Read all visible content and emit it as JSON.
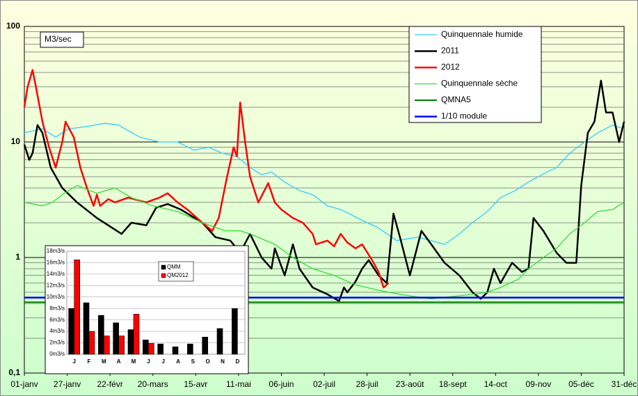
{
  "chart_data": [
    {
      "type": "line",
      "y_unit": "M3/sec",
      "log_scale": true,
      "grid": true,
      "legend": "top-right",
      "xlim": [
        0,
        364
      ],
      "xticks": [
        {
          "value": 0,
          "label": "01-janv"
        },
        {
          "value": 26,
          "label": "27-janv"
        },
        {
          "value": 52,
          "label": "22-févr"
        },
        {
          "value": 78,
          "label": "20-mars"
        },
        {
          "value": 104,
          "label": "15-avr"
        },
        {
          "value": 130,
          "label": "11-mai"
        },
        {
          "value": 156,
          "label": "06-juin"
        },
        {
          "value": 182,
          "label": "02-juil"
        },
        {
          "value": 208,
          "label": "28-juil"
        },
        {
          "value": 234,
          "label": "23-août"
        },
        {
          "value": 260,
          "label": "18-sept"
        },
        {
          "value": 286,
          "label": "14-oct"
        },
        {
          "value": 312,
          "label": "09-nov"
        },
        {
          "value": 338,
          "label": "05-déc"
        },
        {
          "value": 364,
          "label": "31-déc"
        }
      ],
      "ylim": [
        0.1,
        100
      ],
      "yticks": [
        {
          "value": 0.1,
          "label": "0,1"
        },
        1,
        10,
        100
      ],
      "yminor": [
        0.2,
        0.3,
        0.4,
        0.5,
        0.6,
        0.7,
        0.8,
        0.9,
        2,
        3,
        4,
        5,
        6,
        7,
        8,
        9,
        20,
        30,
        40,
        50,
        60,
        70,
        80,
        90
      ],
      "series": [
        {
          "name": "Quinquennale humide",
          "color": "#33ccff",
          "width": 1.3,
          "x": [
            0,
            11,
            19,
            27,
            36,
            49,
            57,
            70,
            82,
            93,
            103,
            112,
            120,
            129,
            137,
            144,
            150,
            158,
            167,
            175,
            184,
            192,
            205,
            215,
            226,
            239,
            247,
            255,
            264,
            272,
            281,
            289,
            298,
            306,
            315,
            323,
            331,
            340,
            348,
            357,
            364
          ],
          "values": [
            12,
            13,
            11,
            13,
            13.5,
            14.5,
            14,
            11,
            10,
            10,
            8.5,
            9,
            8,
            7.5,
            6,
            5.2,
            5.5,
            4.5,
            3.8,
            3.5,
            2.8,
            2.6,
            2.1,
            1.8,
            1.4,
            1.5,
            1.4,
            1.3,
            1.6,
            2,
            2.5,
            3.3,
            3.8,
            4.5,
            5.3,
            6,
            8,
            10,
            12,
            14,
            13
          ]
        },
        {
          "name": "2011",
          "color": "#000000",
          "width": 2.5,
          "x": [
            0,
            3,
            5,
            8,
            11,
            16,
            23,
            32,
            44,
            59,
            65,
            74,
            80,
            87,
            95,
            108,
            116,
            125,
            131,
            137,
            144,
            150,
            152,
            158,
            163,
            167,
            175,
            184,
            191,
            194,
            196,
            201,
            205,
            209,
            215,
            220,
            224,
            228,
            234,
            241,
            247,
            255,
            264,
            272,
            277,
            281,
            285,
            289,
            296,
            302,
            306,
            309,
            315,
            323,
            329,
            335,
            338,
            342,
            346,
            350,
            353,
            357,
            361,
            364
          ],
          "values": [
            9.5,
            7,
            8,
            14,
            12,
            6,
            4,
            3,
            2.2,
            1.6,
            2,
            1.9,
            2.7,
            2.9,
            2.6,
            2,
            1.5,
            1.4,
            1.1,
            1.6,
            1,
            0.8,
            1.2,
            0.7,
            1.3,
            0.8,
            0.55,
            0.48,
            0.42,
            0.55,
            0.5,
            0.62,
            0.8,
            0.95,
            0.7,
            0.6,
            2.4,
            1.5,
            0.7,
            1.7,
            1.3,
            0.9,
            0.7,
            0.5,
            0.44,
            0.5,
            0.8,
            0.6,
            0.9,
            0.75,
            0.8,
            2.2,
            1.7,
            1.1,
            0.9,
            0.9,
            4.2,
            12,
            15,
            34,
            18,
            18,
            10,
            15
          ]
        },
        {
          "name": "2012",
          "color": "#ff0000",
          "width": 2.5,
          "x": [
            0,
            2,
            5,
            7,
            11,
            15,
            19,
            23,
            25,
            30,
            34,
            38,
            42,
            44,
            46,
            51,
            55,
            63,
            74,
            82,
            87,
            93,
            99,
            108,
            114,
            118,
            123,
            127,
            129,
            131,
            134,
            137,
            142,
            148,
            152,
            156,
            163,
            169,
            175,
            177,
            184,
            188,
            192,
            196,
            201,
            205,
            211,
            215,
            218,
            221
          ],
          "values": [
            20,
            30,
            42,
            30,
            15,
            9,
            6,
            10,
            15,
            11,
            6,
            4,
            2.8,
            3.5,
            2.8,
            3.2,
            3,
            3.3,
            3,
            3.3,
            3.6,
            3,
            2.6,
            2,
            1.7,
            2.2,
            5,
            9,
            7.5,
            22,
            10,
            5,
            3,
            4.4,
            3,
            2.6,
            2.2,
            2,
            1.6,
            1.3,
            1.4,
            1.25,
            1.6,
            1.35,
            1.2,
            1.3,
            0.95,
            0.75,
            0.55,
            0.6
          ]
        },
        {
          "name": "Quinquennale sèche",
          "color": "#33dd33",
          "width": 1.3,
          "x": [
            0,
            11,
            17,
            23,
            32,
            44,
            55,
            65,
            78,
            93,
            108,
            122,
            131,
            137,
            152,
            163,
            175,
            188,
            201,
            215,
            228,
            241,
            247,
            260,
            272,
            281,
            289,
            300,
            306,
            315,
            323,
            331,
            340,
            348,
            357,
            364
          ],
          "values": [
            3,
            2.8,
            3,
            3.5,
            4.2,
            3.6,
            4,
            3.3,
            2.8,
            2.5,
            2,
            1.7,
            1.7,
            1.6,
            1.3,
            1,
            0.8,
            0.7,
            0.58,
            0.52,
            0.48,
            0.45,
            0.44,
            0.46,
            0.48,
            0.5,
            0.55,
            0.65,
            0.8,
            1,
            1.2,
            1.6,
            2,
            2.5,
            2.6,
            3
          ]
        },
        {
          "name": "QMNA5",
          "color": "#008000",
          "width": 2,
          "x": [
            0,
            364
          ],
          "values": [
            0.41,
            0.41
          ]
        },
        {
          "name": "1/10 module",
          "color": "#0000ff",
          "width": 2.5,
          "x": [
            0,
            364
          ],
          "values": [
            0.45,
            0.45
          ]
        }
      ]
    },
    {
      "type": "bar",
      "categories": [
        "J",
        "F",
        "M",
        "A",
        "M",
        "J",
        "J",
        "A",
        "S",
        "O",
        "N",
        "D"
      ],
      "ylim": [
        0,
        18
      ],
      "yticks": [
        {
          "value": 0,
          "label": "0m3/s"
        },
        {
          "value": 2,
          "label": "2m3/s"
        },
        {
          "value": 4,
          "label": "4m3/s"
        },
        {
          "value": 6,
          "label": "6m3/s"
        },
        {
          "value": 8,
          "label": "8m3/s"
        },
        {
          "value": 10,
          "label": "10m3/s"
        },
        {
          "value": 12,
          "label": "12m3/s"
        },
        {
          "value": 14,
          "label": "14m3/s"
        },
        {
          "value": 16,
          "label": "16m3/s"
        },
        {
          "value": 18,
          "label": "18m3/s"
        }
      ],
      "series": [
        {
          "name": "QMM",
          "color": "#000000",
          "values": [
            8,
            9,
            6.8,
            5.5,
            4.3,
            2.5,
            1.8,
            1.3,
            1.8,
            3,
            4.5,
            8
          ]
        },
        {
          "name": "QM2012",
          "color": "#ff0000",
          "values": [
            16.5,
            4,
            3.2,
            3.2,
            7,
            1.9,
            null,
            null,
            null,
            null,
            null,
            null
          ]
        }
      ]
    }
  ]
}
